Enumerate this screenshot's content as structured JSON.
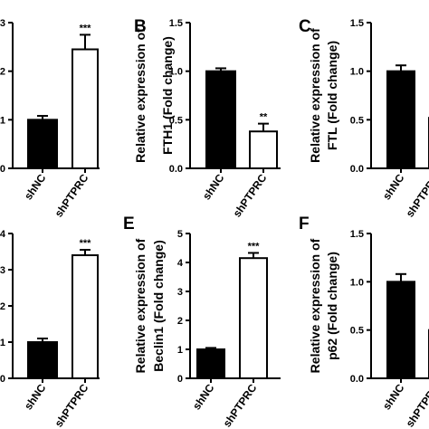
{
  "figure": {
    "panels": [
      {
        "id": "A",
        "letter": "",
        "ylabel": "",
        "ylabel2": "",
        "sig": "***",
        "ylim": [
          0,
          3
        ],
        "yticks": [
          "0",
          "1",
          "2",
          "3"
        ]
      },
      {
        "id": "B",
        "letter": "B",
        "ylabel": "Relative expression of",
        "ylabel2": "FTH1 (Fold change)",
        "sig": "**",
        "ylim": [
          0,
          1.5
        ],
        "yticks": [
          "0.0",
          "0.5",
          "1.0",
          "1.5"
        ]
      },
      {
        "id": "C",
        "letter": "C",
        "ylabel": "Relative expression of",
        "ylabel2": "FTL (Fold change)",
        "sig": "",
        "ylim": [
          0,
          1.5
        ],
        "yticks": [
          "0.0",
          "0.5",
          "1.0",
          "1.5"
        ]
      },
      {
        "id": "D",
        "letter": "",
        "ylabel": "",
        "ylabel2": "",
        "sig": "***",
        "ylim": [
          0,
          4
        ],
        "yticks": [
          "0",
          "1",
          "2",
          "3",
          "4"
        ]
      },
      {
        "id": "E",
        "letter": "E",
        "ylabel": "Relative expression of",
        "ylabel2": "Beclin1 (Fold change)",
        "sig": "***",
        "ylim": [
          0,
          5
        ],
        "yticks": [
          "0",
          "1",
          "2",
          "3",
          "4",
          "5"
        ]
      },
      {
        "id": "F",
        "letter": "F",
        "ylabel": "Relative expression of",
        "ylabel2": "p62 (Fold change)",
        "sig": "",
        "ylim": [
          0,
          1.5
        ],
        "yticks": [
          "0.0",
          "0.5",
          "1.0",
          "1.5"
        ]
      }
    ]
  },
  "chart_data": [
    {
      "panel": "A",
      "type": "bar",
      "categories": [
        "shNC",
        "shPTPRC"
      ],
      "values": [
        1.0,
        2.45
      ],
      "errors": [
        0.08,
        0.3
      ],
      "ylim": [
        0,
        3
      ],
      "fills": [
        "#000000",
        "#ffffff"
      ]
    },
    {
      "panel": "B",
      "type": "bar",
      "categories": [
        "shNC",
        "shPTPRC"
      ],
      "values": [
        1.0,
        0.38
      ],
      "errors": [
        0.03,
        0.08
      ],
      "ylim": [
        0,
        1.5
      ],
      "fills": [
        "#000000",
        "#ffffff"
      ]
    },
    {
      "panel": "C",
      "type": "bar",
      "categories": [
        "shNC",
        "shPTPRC"
      ],
      "values": [
        1.0,
        0.52
      ],
      "errors": [
        0.06,
        0.0
      ],
      "ylim": [
        0,
        1.5
      ],
      "fills": [
        "#000000",
        "#000000"
      ]
    },
    {
      "panel": "D",
      "type": "bar",
      "categories": [
        "shNC",
        "shPTPRC"
      ],
      "values": [
        1.0,
        3.4
      ],
      "errors": [
        0.1,
        0.15
      ],
      "ylim": [
        0,
        4
      ],
      "fills": [
        "#000000",
        "#ffffff"
      ]
    },
    {
      "panel": "E",
      "type": "bar",
      "categories": [
        "shNC",
        "shPTPRC"
      ],
      "values": [
        1.0,
        4.15
      ],
      "errors": [
        0.05,
        0.18
      ],
      "ylim": [
        0,
        5
      ],
      "fills": [
        "#000000",
        "#ffffff"
      ]
    },
    {
      "panel": "F",
      "type": "bar",
      "categories": [
        "shNC",
        "shPTPRC"
      ],
      "values": [
        1.0,
        0.5
      ],
      "errors": [
        0.08,
        0.0
      ],
      "ylim": [
        0,
        1.5
      ],
      "fills": [
        "#000000",
        "#000000"
      ]
    }
  ]
}
